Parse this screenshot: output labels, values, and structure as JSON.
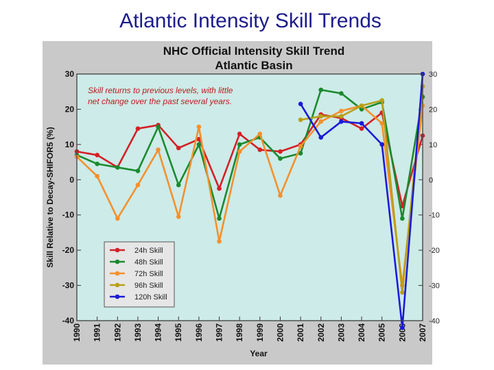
{
  "slide": {
    "title": "Atlantic Intensity Skill Trends"
  },
  "chart_data": {
    "type": "line",
    "title": "NHC Official Intensity Skill Trend",
    "subtitle": "Atlantic Basin",
    "xlabel": "Year",
    "ylabel": "Skill Relative to Decay-SHIFOR5 (%)",
    "ylim": [
      -40,
      30
    ],
    "yticks": [
      30,
      20,
      10,
      0,
      -10,
      -20,
      -30,
      -40
    ],
    "x": [
      1990,
      1991,
      1992,
      1993,
      1994,
      1995,
      1996,
      1997,
      1998,
      1999,
      2000,
      2001,
      2002,
      2003,
      2004,
      2005,
      2006,
      2007
    ],
    "grid": false,
    "legend_position": "bottom-left",
    "annotation": "Skill returns to previous levels, with little net change over the past several years.",
    "series": [
      {
        "name": "24h Skill",
        "color": "#d42027",
        "values": [
          8,
          7,
          3.5,
          14.5,
          15.5,
          9,
          11.5,
          -2.5,
          13,
          8.5,
          8,
          10,
          18.5,
          17.5,
          14.5,
          19,
          -7.5,
          12.5
        ]
      },
      {
        "name": "48h Skill",
        "color": "#1a8a2e",
        "values": [
          7,
          4.5,
          3.5,
          2.5,
          15,
          -1.5,
          10,
          -11,
          10,
          12,
          6,
          7.5,
          25.5,
          24.5,
          20,
          22,
          -11,
          23.5
        ]
      },
      {
        "name": "72h Skill",
        "color": "#f5902c",
        "values": [
          6.5,
          1,
          -11,
          -1.5,
          8.5,
          -10.5,
          15,
          -17.5,
          8,
          13,
          -4.5,
          9.5,
          16.5,
          19.5,
          21,
          16,
          -30,
          21
        ]
      },
      {
        "name": "96h Skill",
        "color": "#b8a018",
        "values": [
          null,
          null,
          null,
          null,
          null,
          null,
          null,
          null,
          null,
          null,
          null,
          17,
          18,
          18,
          21,
          22.5,
          -32,
          26.5
        ]
      },
      {
        "name": "120h Skill",
        "color": "#1a1ad8",
        "values": [
          null,
          null,
          null,
          null,
          null,
          null,
          null,
          null,
          null,
          null,
          null,
          21.5,
          12,
          16.5,
          16,
          10,
          -42,
          30
        ]
      }
    ]
  }
}
